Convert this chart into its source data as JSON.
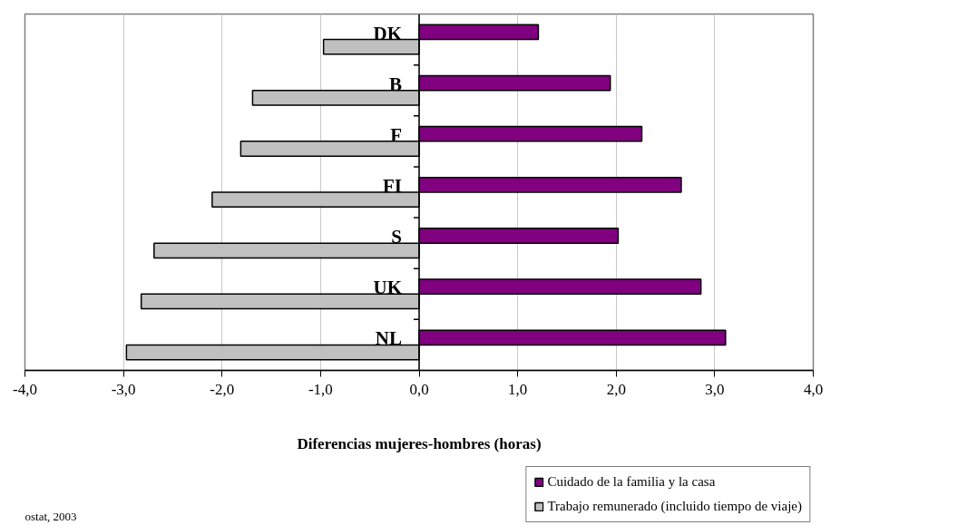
{
  "chart_data": {
    "type": "bar",
    "orientation": "horizontal",
    "categories": [
      "DK",
      "B",
      "F",
      "FI",
      "S",
      "UK",
      "NL"
    ],
    "series": [
      {
        "name": "Cuidado de la familia y la casa",
        "color": "#800080",
        "values": [
          1.21,
          1.94,
          2.26,
          2.66,
          2.02,
          2.86,
          3.11
        ]
      },
      {
        "name": "Trabajo remunerado (incluido tiempo de viaje)",
        "color": "#c0c0c0",
        "values": [
          -0.97,
          -1.69,
          -1.81,
          -2.1,
          -2.69,
          -2.82,
          -2.97
        ]
      }
    ],
    "xlim": [
      -4,
      4
    ],
    "xticks": [
      {
        "value": -4,
        "label": "-4,0"
      },
      {
        "value": -3,
        "label": "-3,0"
      },
      {
        "value": -2,
        "label": "-2,0"
      },
      {
        "value": -1,
        "label": "-1,0"
      },
      {
        "value": 0,
        "label": "0,0"
      },
      {
        "value": 1,
        "label": "1,0"
      },
      {
        "value": 2,
        "label": "2,0"
      },
      {
        "value": 3,
        "label": "3,0"
      },
      {
        "value": 4,
        "label": "4,0"
      }
    ],
    "xlabel": "Diferencias mujeres-hombres (horas)",
    "grid": "x",
    "legend": "bottom right",
    "annotations": [
      "ostat, 2003"
    ]
  }
}
